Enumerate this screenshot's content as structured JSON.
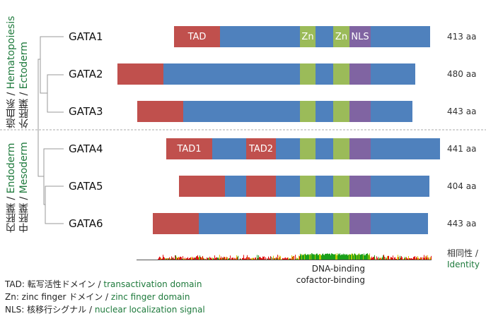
{
  "groups": {
    "top_line1_jp": "造血系 /",
    "top_line1_en": "Hematopoiesis",
    "top_line2_jp": "外胚葉 /",
    "top_line2_en": "Ectoderm",
    "bottom_line1_jp": "内胚葉 /",
    "bottom_line1_en": "Endoderm",
    "bottom_line2_jp": "中胚葉 /",
    "bottom_line2_en": "Mesoderm"
  },
  "proteins": [
    {
      "name": "GATA1",
      "length": "413 aa"
    },
    {
      "name": "GATA2",
      "length": "480 aa"
    },
    {
      "name": "GATA3",
      "length": "443 aa"
    },
    {
      "name": "GATA4",
      "length": "441 aa"
    },
    {
      "name": "GATA5",
      "length": "404 aa"
    },
    {
      "name": "GATA6",
      "length": "443 aa"
    }
  ],
  "domain_labels": {
    "tad": "TAD",
    "zn": "Zn",
    "nls": "NLS",
    "tad1": "TAD1",
    "tad2": "TAD2"
  },
  "colors": {
    "tad": "#c0504d",
    "other": "#4f81bd",
    "zn": "#9bbb59",
    "nls": "#8064a2"
  },
  "identity": {
    "label_jp": "相同性 /",
    "label_en": "Identity",
    "note1": "DNA-binding",
    "note2": "cofactor-binding"
  },
  "legend": [
    {
      "abbr": "TAD: 転写活性ドメイン / ",
      "en": "transactivation domain"
    },
    {
      "abbr": "Zn: zinc finger ドメイン  / ",
      "en": "zinc finger domain"
    },
    {
      "abbr": "NLS: 核移行シグナル / ",
      "en": "nuclear localization signal"
    }
  ]
}
